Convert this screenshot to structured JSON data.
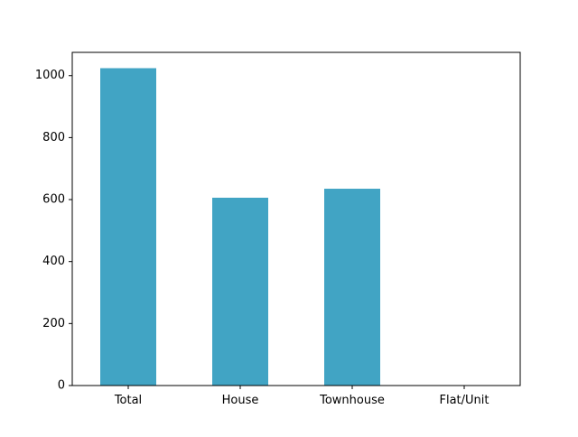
{
  "chart_data": {
    "type": "bar",
    "title": "",
    "xlabel": "",
    "ylabel": "",
    "categories": [
      "Total",
      "House",
      "Townhouse",
      "Flat/Unit"
    ],
    "values": [
      1024,
      606,
      635,
      0
    ],
    "ylim": [
      0,
      1075
    ],
    "yticks": [
      0,
      200,
      400,
      600,
      800,
      1000
    ],
    "grid": false,
    "legend": "none",
    "bar_color": "#41a4c4"
  }
}
